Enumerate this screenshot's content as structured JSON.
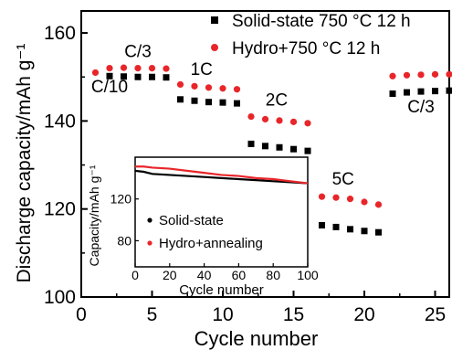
{
  "chart_data": [
    {
      "type": "scatter",
      "xlabel": "Cycle number",
      "ylabel": "Discharge capacity/mAh g⁻¹",
      "xlim": [
        0,
        26
      ],
      "ylim": [
        100,
        165
      ],
      "xticks": [
        0,
        5,
        10,
        15,
        20,
        25
      ],
      "xtick_labels": [
        "0",
        "5",
        "10",
        "15",
        "20",
        "25"
      ],
      "yticks": [
        100,
        120,
        140,
        160
      ],
      "ytick_labels": [
        "100",
        "120",
        "140",
        "160"
      ],
      "legend_position": "top-right",
      "annotations": [
        {
          "text": "C/10",
          "x": 2.0,
          "y": 146.5
        },
        {
          "text": "C/3",
          "x": 4.0,
          "y": 154.5
        },
        {
          "text": "1C",
          "x": 8.5,
          "y": 150.5
        },
        {
          "text": "2C",
          "x": 13.8,
          "y": 143.5
        },
        {
          "text": "5C",
          "x": 18.5,
          "y": 125.5
        },
        {
          "text": "C/3",
          "x": 24.0,
          "y": 142.0
        }
      ],
      "series": [
        {
          "name": "Solid-state 750 °C 12 h",
          "color": "#000000",
          "marker": "square",
          "x": [
            2,
            3,
            4,
            5,
            6,
            7,
            8,
            9,
            10,
            11,
            12,
            13,
            14,
            15,
            16,
            17,
            18,
            19,
            20,
            21,
            22,
            23,
            24,
            25,
            26
          ],
          "y": [
            150.2,
            150.1,
            150.0,
            150.0,
            149.9,
            144.9,
            144.6,
            144.3,
            144.2,
            144.0,
            134.8,
            134.3,
            134.0,
            133.6,
            133.2,
            116.3,
            115.9,
            115.4,
            115.0,
            114.7,
            146.2,
            146.5,
            146.7,
            146.8,
            146.9
          ]
        },
        {
          "name": "Hydro+750 °C 12 h",
          "color": "#e8262a",
          "marker": "circle",
          "x": [
            1,
            2,
            3,
            4,
            5,
            6,
            7,
            8,
            9,
            10,
            11,
            12,
            13,
            14,
            15,
            16,
            17,
            18,
            19,
            20,
            21,
            22,
            23,
            24,
            25,
            26
          ],
          "y": [
            151.0,
            152.0,
            152.1,
            152.0,
            152.0,
            151.9,
            148.3,
            147.9,
            147.6,
            147.4,
            147.2,
            141.0,
            140.4,
            140.1,
            139.8,
            139.5,
            122.8,
            122.6,
            122.3,
            121.6,
            121.0,
            150.2,
            150.4,
            150.5,
            150.6,
            150.6
          ]
        }
      ]
    },
    {
      "type": "line",
      "xlabel": "Cycle number",
      "ylabel": "Capacity/mAh g⁻¹",
      "xlim": [
        0,
        100
      ],
      "ylim": [
        55,
        160
      ],
      "xticks": [
        0,
        20,
        40,
        60,
        80,
        100
      ],
      "xtick_labels": [
        "0",
        "20",
        "40",
        "60",
        "80",
        "100"
      ],
      "yticks": [
        80,
        120
      ],
      "ytick_labels": [
        "80",
        "120"
      ],
      "legend_position": "bottom-right",
      "series": [
        {
          "name": "Solid-state",
          "color": "#000000",
          "x": [
            0,
            5,
            10,
            20,
            30,
            40,
            50,
            60,
            70,
            80,
            90,
            100
          ],
          "y": [
            147,
            146,
            144,
            143,
            142,
            141,
            140,
            139,
            138,
            137,
            136,
            135
          ]
        },
        {
          "name": "Hydro+annealing",
          "color": "#e8262a",
          "x": [
            0,
            5,
            10,
            20,
            30,
            40,
            50,
            60,
            70,
            80,
            90,
            100
          ],
          "y": [
            151,
            151,
            150,
            149,
            147,
            145,
            143,
            142,
            140,
            139,
            137,
            135
          ]
        }
      ]
    }
  ]
}
